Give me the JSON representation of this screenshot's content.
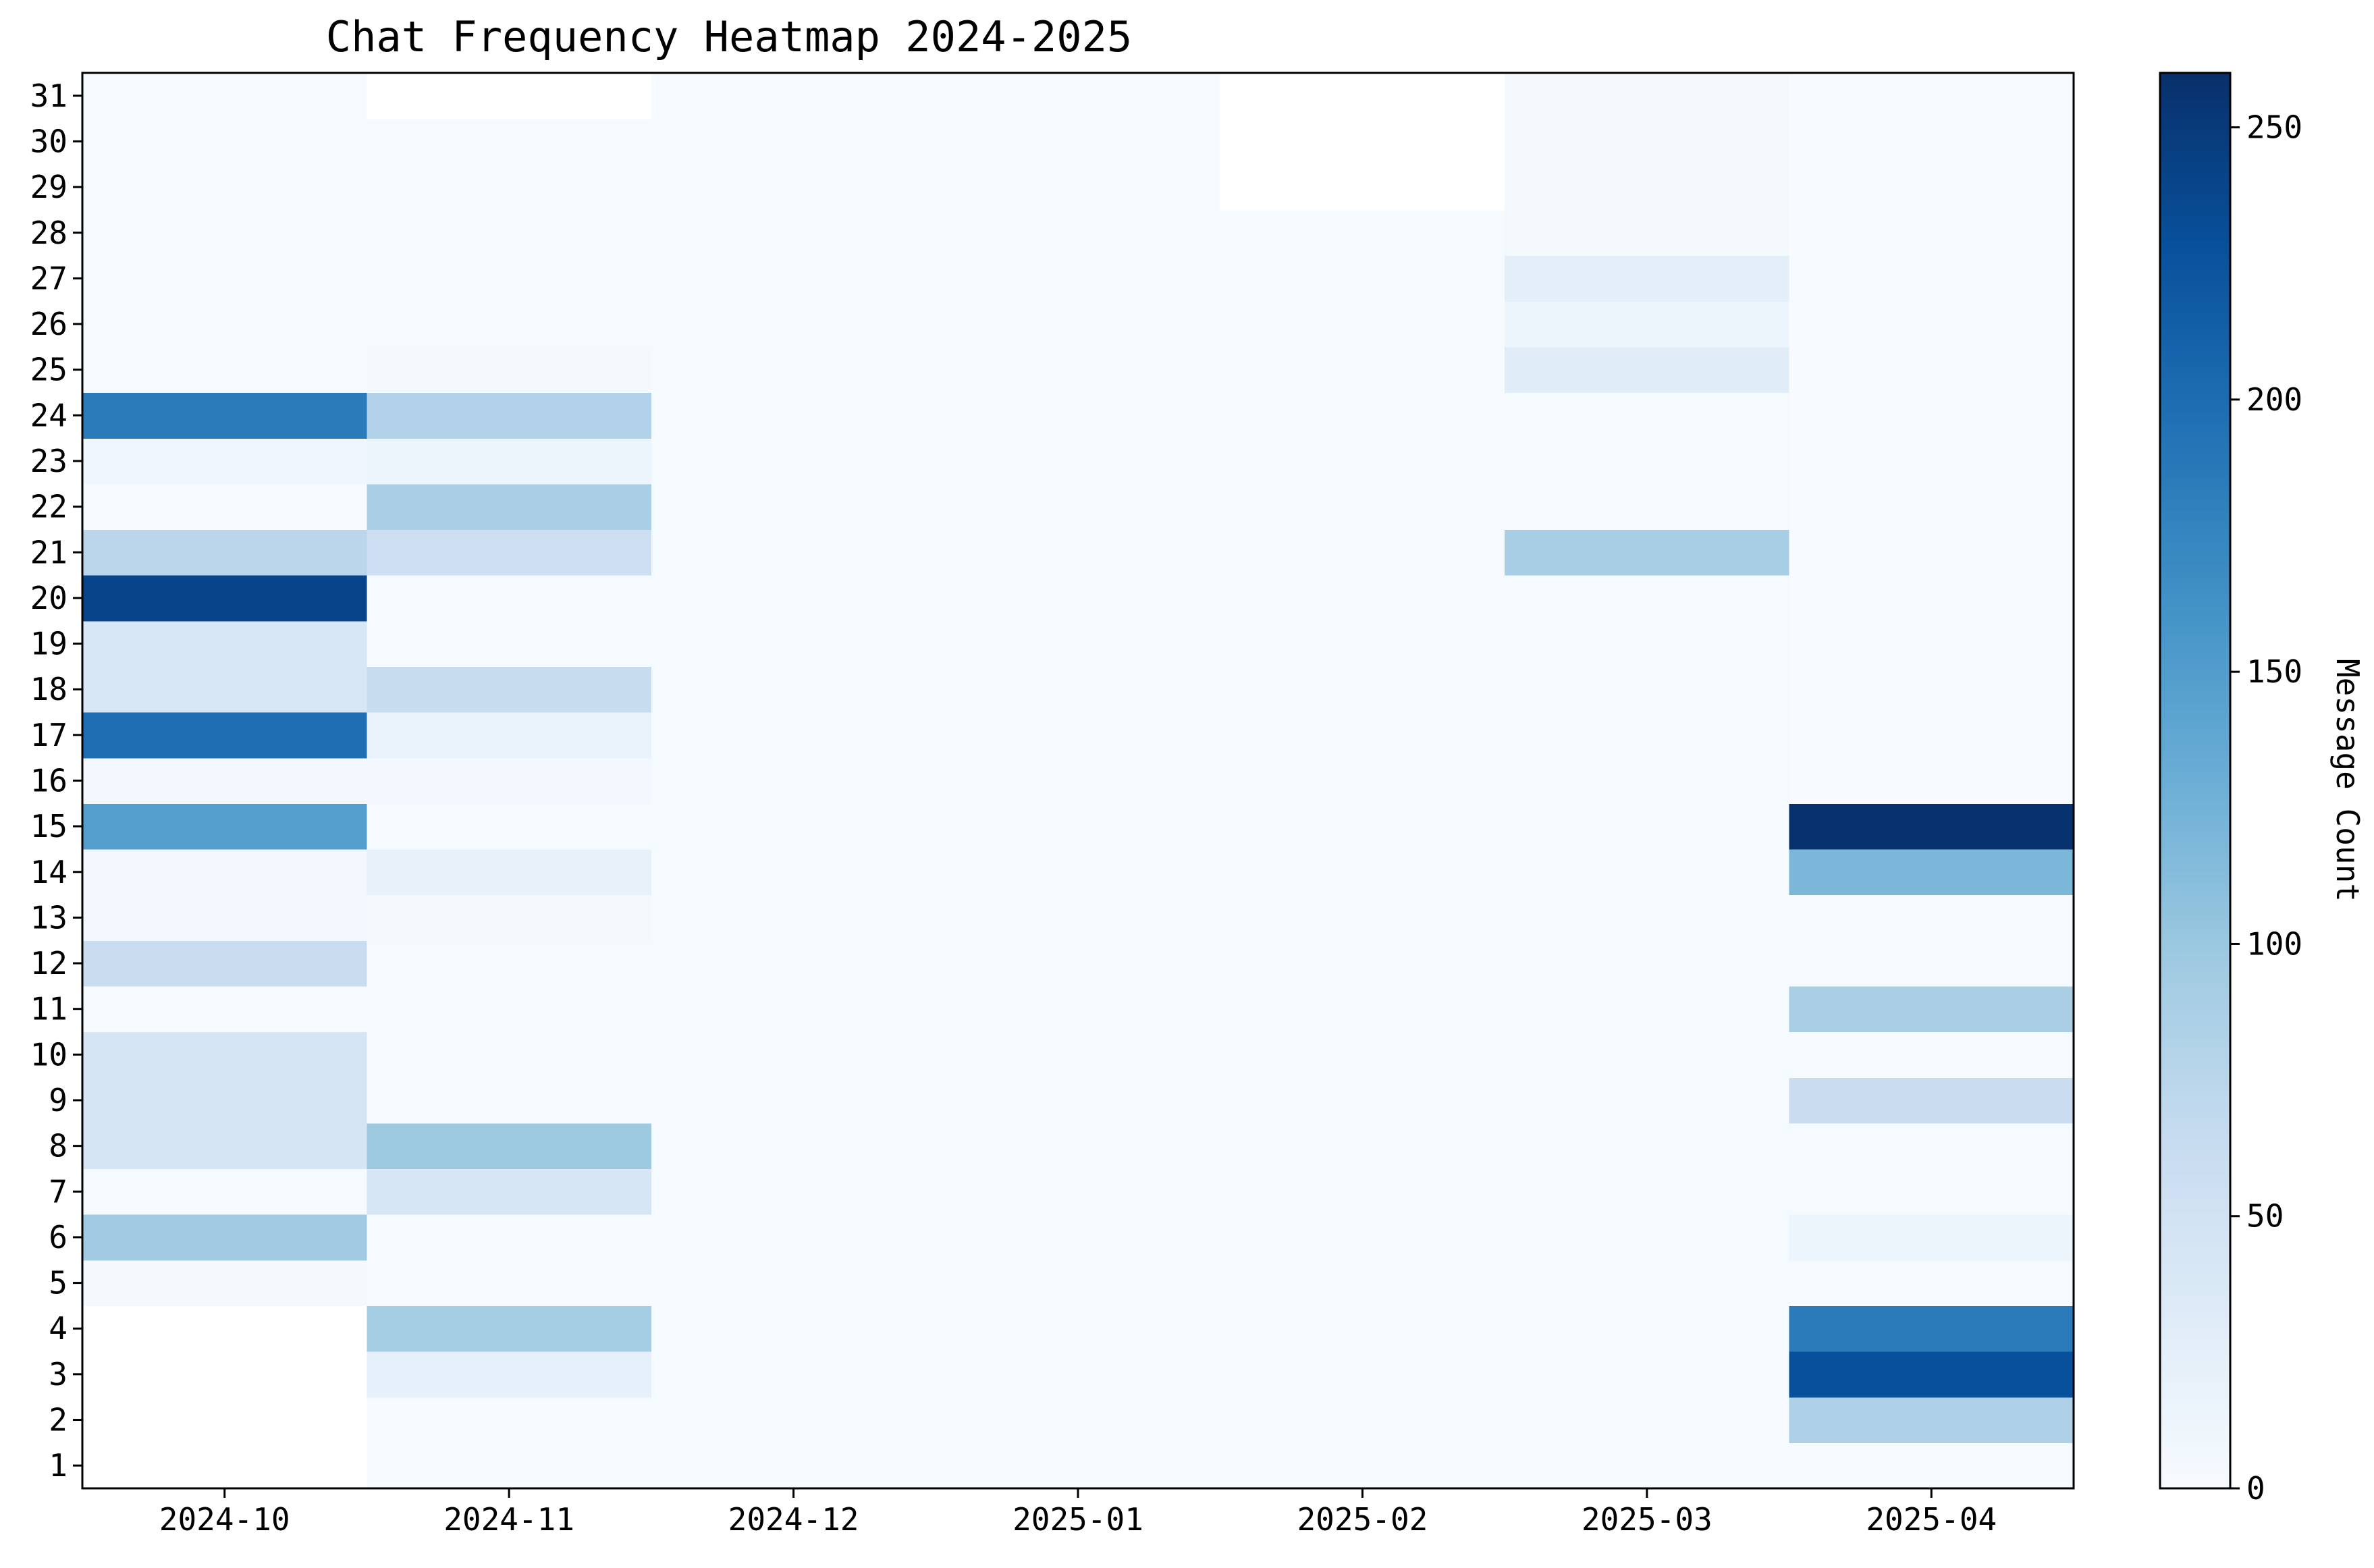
{
  "chart_data": {
    "type": "heatmap",
    "title": "Chat Frequency Heatmap 2024-2025",
    "xlabel": "",
    "ylabel": "",
    "x_categories": [
      "2024-10",
      "2024-11",
      "2024-12",
      "2025-01",
      "2025-02",
      "2025-03",
      "2025-04"
    ],
    "y_categories": [
      "1",
      "2",
      "3",
      "4",
      "5",
      "6",
      "7",
      "8",
      "9",
      "10",
      "11",
      "12",
      "13",
      "14",
      "15",
      "16",
      "17",
      "18",
      "19",
      "20",
      "21",
      "22",
      "23",
      "24",
      "25",
      "26",
      "27",
      "28",
      "29",
      "30",
      "31"
    ],
    "values": [
      [
        null,
        null,
        null,
        null,
        4,
        96,
        2,
        44,
        44,
        44,
        2,
        60,
        6,
        6,
        148,
        6,
        198,
        40,
        40,
        240,
        74,
        2,
        10,
        185,
        2,
        2,
        2,
        2,
        2,
        2,
        2
      ],
      [
        2,
        2,
        22,
        92,
        2,
        2,
        42,
        98,
        2,
        2,
        2,
        2,
        4,
        20,
        2,
        6,
        18,
        62,
        2,
        2,
        56,
        88,
        14,
        82,
        4,
        2,
        2,
        2,
        2,
        2,
        null
      ],
      [
        2,
        2,
        2,
        2,
        2,
        2,
        2,
        2,
        2,
        2,
        2,
        2,
        2,
        2,
        2,
        2,
        2,
        2,
        2,
        2,
        2,
        2,
        2,
        2,
        2,
        2,
        2,
        2,
        2,
        2,
        2
      ],
      [
        2,
        2,
        2,
        2,
        2,
        2,
        2,
        2,
        2,
        2,
        2,
        2,
        2,
        2,
        2,
        2,
        2,
        2,
        2,
        2,
        2,
        2,
        2,
        2,
        2,
        2,
        2,
        2,
        2,
        2,
        2
      ],
      [
        2,
        2,
        2,
        2,
        2,
        2,
        2,
        2,
        2,
        2,
        2,
        2,
        2,
        2,
        2,
        2,
        2,
        2,
        2,
        2,
        2,
        2,
        2,
        2,
        2,
        2,
        2,
        2,
        null,
        null,
        null
      ],
      [
        2,
        2,
        2,
        2,
        2,
        2,
        2,
        2,
        2,
        2,
        2,
        2,
        2,
        2,
        2,
        2,
        2,
        2,
        2,
        2,
        90,
        2,
        2,
        2,
        30,
        14,
        26,
        4,
        4,
        4,
        4
      ],
      [
        2,
        84,
        228,
        185,
        2,
        14,
        2,
        2,
        60,
        2,
        88,
        2,
        2,
        120,
        258,
        0,
        0,
        0,
        0,
        0,
        0,
        0,
        0,
        0,
        0,
        0,
        0,
        0,
        0,
        0,
        0
      ]
    ],
    "colorbar": {
      "label": "Message Count",
      "min": 0,
      "max": 260,
      "ticks": [
        0,
        50,
        100,
        150,
        200,
        250
      ],
      "colormap": "Blues",
      "colors": [
        "#f7fbff",
        "#deebf7",
        "#c6dbef",
        "#9ecae1",
        "#6baed6",
        "#4292c6",
        "#2171b5",
        "#08519c",
        "#08306b"
      ]
    },
    "grid": false,
    "missing_cell_color": "#ffffff"
  }
}
